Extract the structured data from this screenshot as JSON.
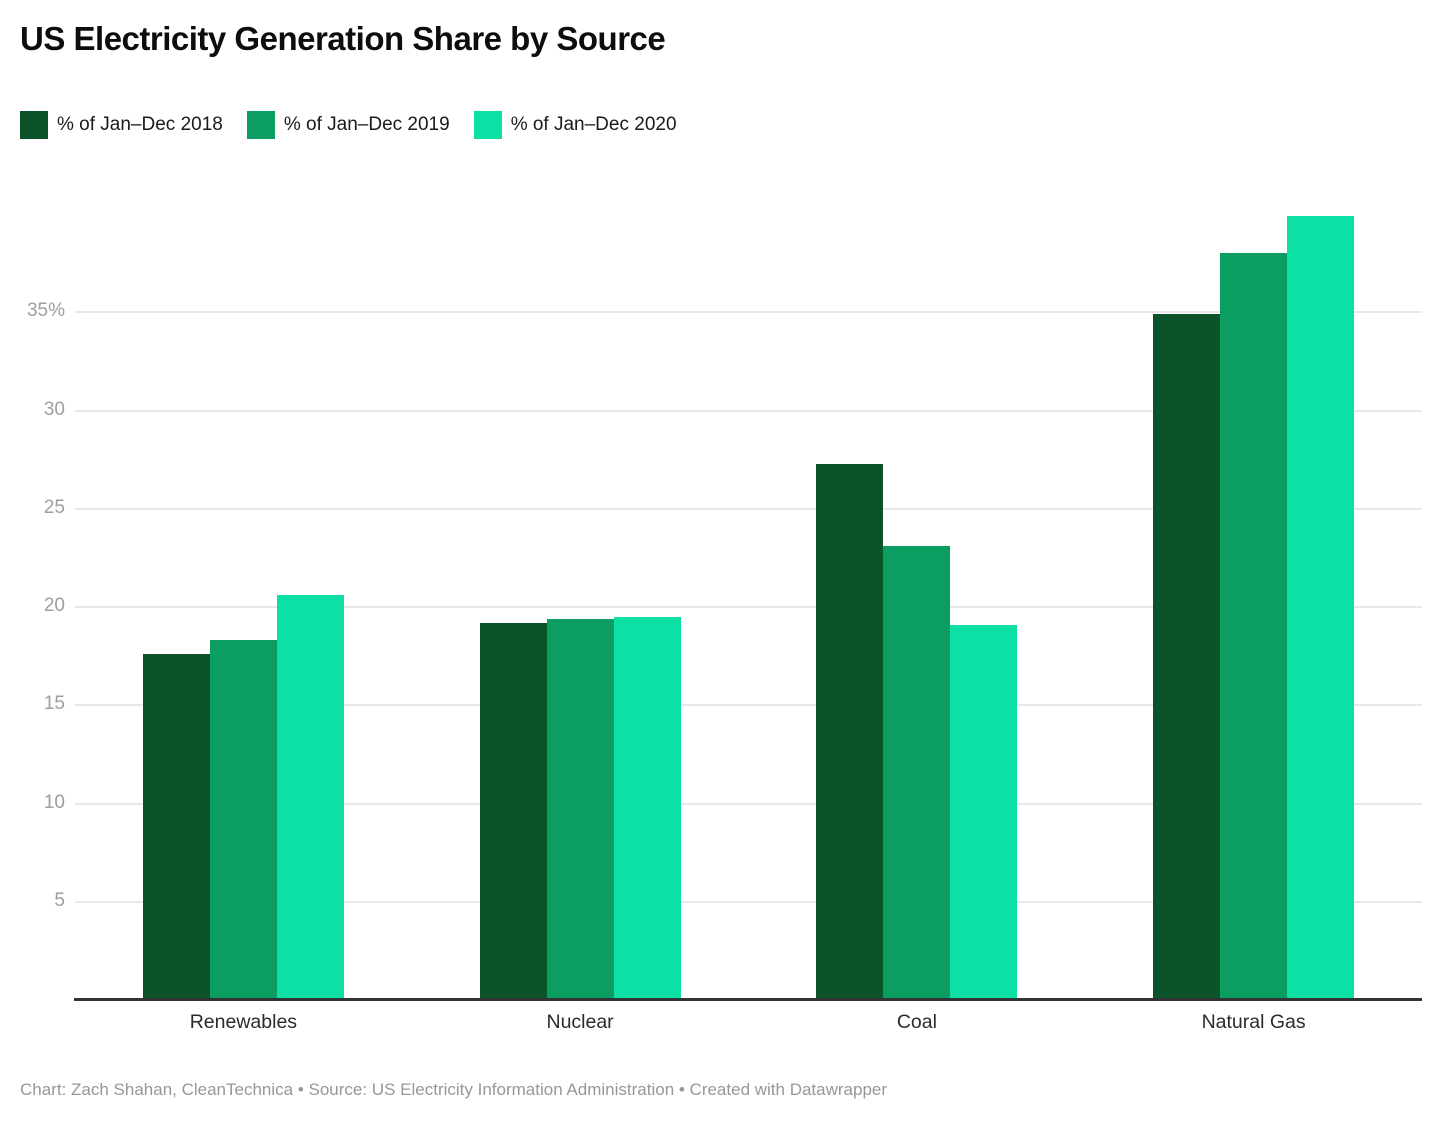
{
  "title": "US Electricity Generation Share by Source",
  "footer": "Chart: Zach Shahan, CleanTechnica • Source: US Electricity Information Administration • Created with Datawrapper",
  "chart_data": {
    "type": "bar",
    "grouped": true,
    "title": "US Electricity Generation Share by Source",
    "xlabel": "",
    "ylabel": "",
    "categories": [
      "Renewables",
      "Nuclear",
      "Coal",
      "Natural Gas"
    ],
    "series": [
      {
        "name": "% of Jan–Dec 2018",
        "color": "#0b5328",
        "values": [
          17.6,
          19.2,
          27.3,
          34.9
        ]
      },
      {
        "name": "% of Jan–Dec 2019",
        "color": "#0b9d62",
        "values": [
          18.3,
          19.4,
          23.1,
          38.0
        ]
      },
      {
        "name": "% of Jan–Dec 2020",
        "color": "#0ce0a5",
        "values": [
          20.6,
          19.5,
          19.1,
          39.9
        ]
      }
    ],
    "ylim": [
      0,
      40
    ],
    "ytick_step": 5,
    "ytick_values": [
      5,
      10,
      15,
      20,
      25,
      30,
      35
    ],
    "ytick_labels": [
      "5",
      "10",
      "15",
      "20",
      "25",
      "30",
      "35%"
    ],
    "grid": "horizontal",
    "legend_position": "top-left"
  }
}
